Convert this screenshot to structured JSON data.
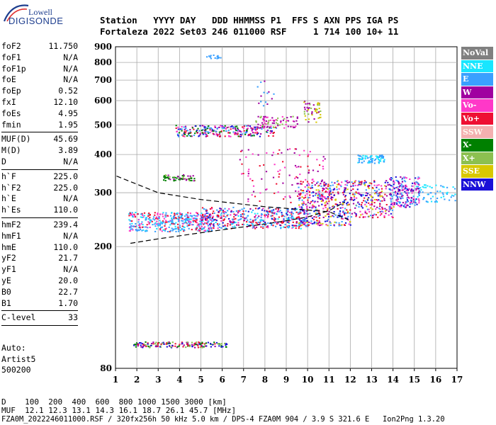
{
  "logo": {
    "top": "Lowell",
    "bottom": "DIGISONDE"
  },
  "header": {
    "line1": "Station   YYYY DAY   DDD HHMMSS P1  FFS S AXN PPS IGA PS",
    "line2": "Fortaleza 2022 Set03 246 011000 RSF     1 714 100 10+ 11"
  },
  "params": [
    {
      "group": [
        {
          "k": "foF2",
          "v": "11.750"
        },
        {
          "k": "foF1",
          "v": "N/A"
        },
        {
          "k": "foF1p",
          "v": "N/A"
        },
        {
          "k": "foE",
          "v": "N/A"
        },
        {
          "k": "foEp",
          "v": "0.52"
        },
        {
          "k": "fxI",
          "v": "12.10"
        },
        {
          "k": "foEs",
          "v": "4.95"
        },
        {
          "k": "fmin",
          "v": "1.95"
        }
      ]
    },
    {
      "group": [
        {
          "k": "MUF(D)",
          "v": "45.69"
        },
        {
          "k": "M(D)",
          "v": "3.89"
        },
        {
          "k": "D",
          "v": "N/A"
        }
      ]
    },
    {
      "group": [
        {
          "k": "h`F",
          "v": "225.0"
        },
        {
          "k": "h`F2",
          "v": "225.0"
        },
        {
          "k": "h`E",
          "v": "N/A"
        },
        {
          "k": "h`Es",
          "v": "110.0"
        }
      ]
    },
    {
      "group": [
        {
          "k": "hmF2",
          "v": "239.4"
        },
        {
          "k": "hmF1",
          "v": "N/A"
        },
        {
          "k": "hmE",
          "v": "110.0"
        },
        {
          "k": "yF2",
          "v": "21.7"
        },
        {
          "k": "yF1",
          "v": "N/A"
        },
        {
          "k": "yE",
          "v": "20.0"
        },
        {
          "k": "B0",
          "v": "22.7"
        },
        {
          "k": "B1",
          "v": "1.70"
        }
      ]
    },
    {
      "group": [
        {
          "k": "C-level",
          "v": "33"
        }
      ]
    }
  ],
  "auto": {
    "line1": "Auto:",
    "line2": "Artist5",
    "line3": "500200"
  },
  "legend": [
    {
      "label": "NoVal",
      "color": "#808080"
    },
    {
      "label": "NNE",
      "color": "#19e6ff"
    },
    {
      "label": "E",
      "color": "#3aa0ff"
    },
    {
      "label": "W",
      "color": "#a000a0"
    },
    {
      "label": "Vo-",
      "color": "#ff38c8"
    },
    {
      "label": "Vo+",
      "color": "#ee1033"
    },
    {
      "label": "SSW",
      "color": "#f4b0b0"
    },
    {
      "label": "X-",
      "color": "#008000"
    },
    {
      "label": "X+",
      "color": "#8cc050"
    },
    {
      "label": "SSE",
      "color": "#d8c800"
    },
    {
      "label": "NNW",
      "color": "#1a10d8"
    }
  ],
  "footer": {
    "line1": "D    100  200  400  600  800 1000 1500 3000 [km]",
    "line2": "MUF  12.1 12.3 13.1 14.3 16.1 18.7 26.1 45.7 [MHz]",
    "line3": "FZA0M_2022246011000.RSF / 320fx256h 50 kHz 5.0 km / DPS-4 FZA0M 904 / 3.9 S 321.6 E   Ion2Png 1.3.20"
  },
  "chart_data": {
    "type": "scatter",
    "xlabel": "",
    "ylabel": "",
    "xlim": [
      1,
      17
    ],
    "ylim": [
      80,
      900
    ],
    "xticks": [
      1,
      2,
      3,
      4,
      5,
      6,
      7,
      8,
      9,
      10,
      11,
      12,
      13,
      14,
      15,
      16,
      17
    ],
    "yticks": [
      80,
      200,
      300,
      400,
      500,
      600,
      700,
      800,
      900
    ],
    "yscale": "log",
    "grid": true,
    "traces": [
      {
        "name": "O-trace F2",
        "x": [
          1.7,
          3,
          5,
          7,
          8,
          9,
          10,
          11,
          11.75
        ],
        "y": [
          205,
          212,
          222,
          232,
          237,
          243,
          250,
          262,
          280
        ]
      },
      {
        "name": "Profile curve",
        "x": [
          1.05,
          3,
          5,
          8,
          11,
          11.9
        ],
        "y": [
          340,
          300,
          285,
          270,
          260,
          245
        ]
      }
    ]
  }
}
